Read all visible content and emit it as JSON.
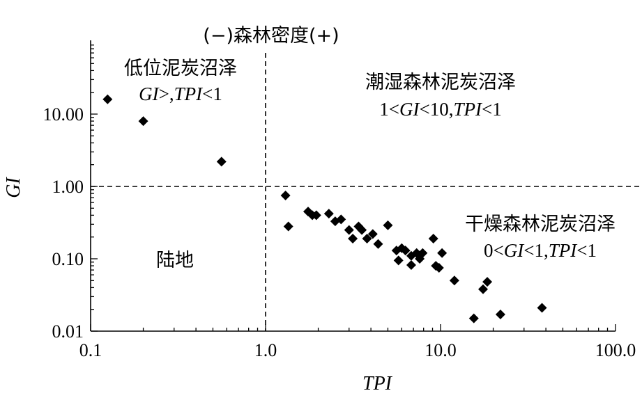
{
  "chart_data": {
    "type": "scatter",
    "xlabel": "TPI",
    "ylabel": "GI",
    "x_scale": "log",
    "y_scale": "log",
    "xlim": [
      0.1,
      100
    ],
    "ylim": [
      0.01,
      60
    ],
    "x_ticks": [
      {
        "value": 0.1,
        "label": "0.1"
      },
      {
        "value": 1,
        "label": "1.0"
      },
      {
        "value": 10,
        "label": "10.0"
      },
      {
        "value": 100,
        "label": "100.0"
      }
    ],
    "y_ticks": [
      {
        "value": 0.01,
        "label": "0.01"
      },
      {
        "value": 0.1,
        "label": "0.10"
      },
      {
        "value": 1,
        "label": "1.00"
      },
      {
        "value": 10,
        "label": "10.00"
      }
    ],
    "reference_lines": {
      "x": 1,
      "y": 1
    },
    "marker": "diamond",
    "marker_color": "#000000",
    "grid": false,
    "points": [
      {
        "x": 0.125,
        "y": 16
      },
      {
        "x": 0.2,
        "y": 8
      },
      {
        "x": 0.56,
        "y": 2.2
      },
      {
        "x": 1.3,
        "y": 0.75
      },
      {
        "x": 1.35,
        "y": 0.28
      },
      {
        "x": 1.75,
        "y": 0.45
      },
      {
        "x": 1.85,
        "y": 0.4
      },
      {
        "x": 1.95,
        "y": 0.4
      },
      {
        "x": 2.3,
        "y": 0.42
      },
      {
        "x": 2.5,
        "y": 0.33
      },
      {
        "x": 2.7,
        "y": 0.35
      },
      {
        "x": 3.0,
        "y": 0.25
      },
      {
        "x": 3.15,
        "y": 0.19
      },
      {
        "x": 3.4,
        "y": 0.28
      },
      {
        "x": 3.55,
        "y": 0.25
      },
      {
        "x": 3.8,
        "y": 0.19
      },
      {
        "x": 4.1,
        "y": 0.22
      },
      {
        "x": 4.4,
        "y": 0.16
      },
      {
        "x": 5.0,
        "y": 0.29
      },
      {
        "x": 5.6,
        "y": 0.13
      },
      {
        "x": 5.75,
        "y": 0.095
      },
      {
        "x": 6.0,
        "y": 0.14
      },
      {
        "x": 6.3,
        "y": 0.13
      },
      {
        "x": 6.8,
        "y": 0.11
      },
      {
        "x": 6.8,
        "y": 0.082
      },
      {
        "x": 7.3,
        "y": 0.12
      },
      {
        "x": 7.6,
        "y": 0.1
      },
      {
        "x": 7.9,
        "y": 0.12
      },
      {
        "x": 9.1,
        "y": 0.19
      },
      {
        "x": 9.4,
        "y": 0.08
      },
      {
        "x": 9.8,
        "y": 0.075
      },
      {
        "x": 10.2,
        "y": 0.12
      },
      {
        "x": 12,
        "y": 0.05
      },
      {
        "x": 15.5,
        "y": 0.015
      },
      {
        "x": 17.5,
        "y": 0.038
      },
      {
        "x": 18.5,
        "y": 0.048
      },
      {
        "x": 22,
        "y": 0.017
      },
      {
        "x": 38,
        "y": 0.021
      }
    ]
  },
  "annotations": {
    "density_label": "(−)森林密度(+)",
    "q_topleft_name": "低位泥炭沼泽",
    "q_topleft_cond": [
      "GI",
      ">,",
      "TPI",
      "<1"
    ],
    "q_topright_name": "潮湿森林泥炭沼泽",
    "q_topright_cond": [
      "1<",
      "GI",
      "<10,",
      "TPI",
      "<1"
    ],
    "q_bottomright_name": "干燥森林泥炭沼泽",
    "q_bottomright_cond": [
      "0<",
      "GI",
      "<1,",
      "TPI",
      "<1"
    ],
    "q_bottomleft_name": "陆地"
  }
}
